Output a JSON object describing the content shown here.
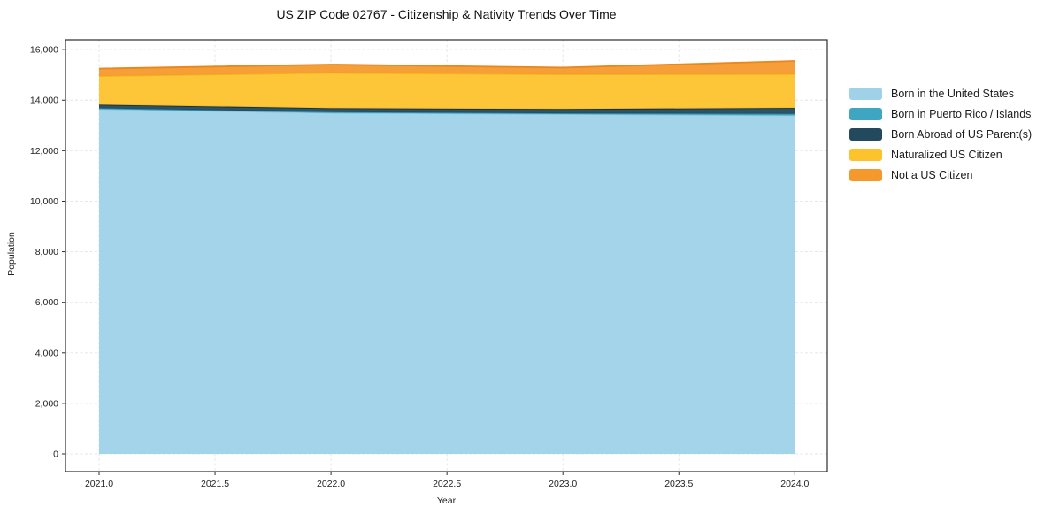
{
  "chart_data": {
    "type": "area",
    "stacked": true,
    "title": "US ZIP Code 02767 - Citizenship & Nativity Trends Over Time",
    "xlabel": "Year",
    "ylabel": "Population",
    "x": [
      2021,
      2022,
      2023,
      2024
    ],
    "series": [
      {
        "name": "Born in the United States",
        "values": [
          13650,
          13500,
          13450,
          13400
        ],
        "color": "#9fd2e8",
        "edge": "#85c2dd"
      },
      {
        "name": "Born in Puerto Rico / Islands",
        "values": [
          30,
          30,
          30,
          60
        ],
        "color": "#3fa6c1",
        "edge": "#2e93ae"
      },
      {
        "name": "Born Abroad of US Parent(s)",
        "values": [
          140,
          150,
          170,
          230
        ],
        "color": "#23495e",
        "edge": "#16303f"
      },
      {
        "name": "Naturalized US Citizen",
        "values": [
          1130,
          1400,
          1370,
          1340
        ],
        "color": "#fcc32d",
        "edge": "#f3b71b"
      },
      {
        "name": "Not a US Citizen",
        "values": [
          300,
          330,
          270,
          520
        ],
        "color": "#f6992c",
        "edge": "#e9861e"
      }
    ],
    "totals": [
      15250,
      15410,
      15290,
      15550
    ],
    "xlim": [
      2020.855,
      2024.14
    ],
    "ylim": [
      -700,
      16390
    ],
    "x_ticks": [
      {
        "v": 2021.0,
        "label": "2021.0"
      },
      {
        "v": 2021.5,
        "label": "2021.5"
      },
      {
        "v": 2022.0,
        "label": "2022.0"
      },
      {
        "v": 2022.5,
        "label": "2022.5"
      },
      {
        "v": 2023.0,
        "label": "2023.0"
      },
      {
        "v": 2023.5,
        "label": "2023.5"
      },
      {
        "v": 2024.0,
        "label": "2024.0"
      }
    ],
    "y_ticks": [
      {
        "v": 0,
        "label": "0"
      },
      {
        "v": 2000,
        "label": "2,000"
      },
      {
        "v": 4000,
        "label": "4,000"
      },
      {
        "v": 6000,
        "label": "6,000"
      },
      {
        "v": 8000,
        "label": "8,000"
      },
      {
        "v": 10000,
        "label": "10,000"
      },
      {
        "v": 12000,
        "label": "12,000"
      },
      {
        "v": 14000,
        "label": "14,000"
      },
      {
        "v": 16000,
        "label": "16,000"
      }
    ],
    "grid": true,
    "legend_position": "right"
  }
}
